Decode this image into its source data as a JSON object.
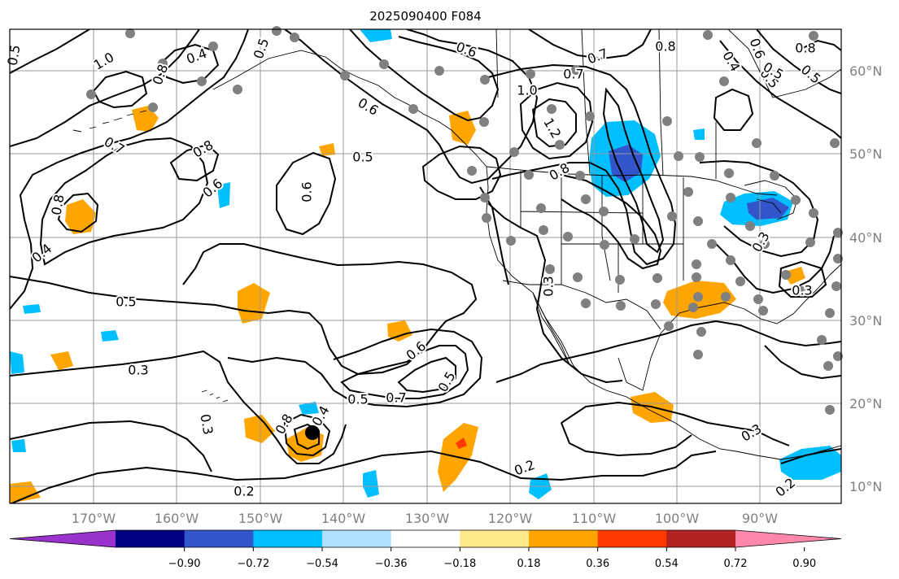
{
  "title": "2025090400 F084",
  "lon_ticks": [
    "170°W",
    "160°W",
    "150°W",
    "140°W",
    "130°W",
    "120°W",
    "110°W",
    "100°W",
    "90°W"
  ],
  "lat_ticks": [
    "60°N",
    "50°N",
    "40°N",
    "30°N",
    "20°N",
    "10°N"
  ],
  "colorbar": {
    "tick_labels": [
      "−0.90",
      "−0.72",
      "−0.54",
      "−0.36",
      "−0.18",
      "0.18",
      "0.36",
      "0.54",
      "0.72",
      "0.90"
    ],
    "colors": [
      "#9933cc",
      "#000080",
      "#3355cc",
      "#00bfff",
      "#b0e0ff",
      "#ffffff",
      "#ffe88a",
      "#ffa500",
      "#ff3a00",
      "#b22222",
      "#ff88aa"
    ]
  },
  "contour_labels": [
    "0.5",
    "1.0",
    "0.4",
    "0.8",
    "0.5",
    "0.7",
    "0.8",
    "0.6",
    "0.5",
    "0.4",
    "0.6",
    "0.8",
    "0.5",
    "0.6",
    "0.5",
    "0.3",
    "0.6",
    "0.7",
    "0.5",
    "0.8",
    "0.4",
    "0.3",
    "0.2",
    "0.2",
    "1.0",
    "1.2",
    "0.8",
    "0.6",
    "0.7",
    "0.8",
    "0.3",
    "0.3",
    "0.3",
    "0.3",
    "0.4",
    "0.2",
    "0.5",
    "0.5",
    "0.8",
    "0.7",
    "0.6",
    "0.5"
  ],
  "marker": "tropical-cyclone-center"
}
